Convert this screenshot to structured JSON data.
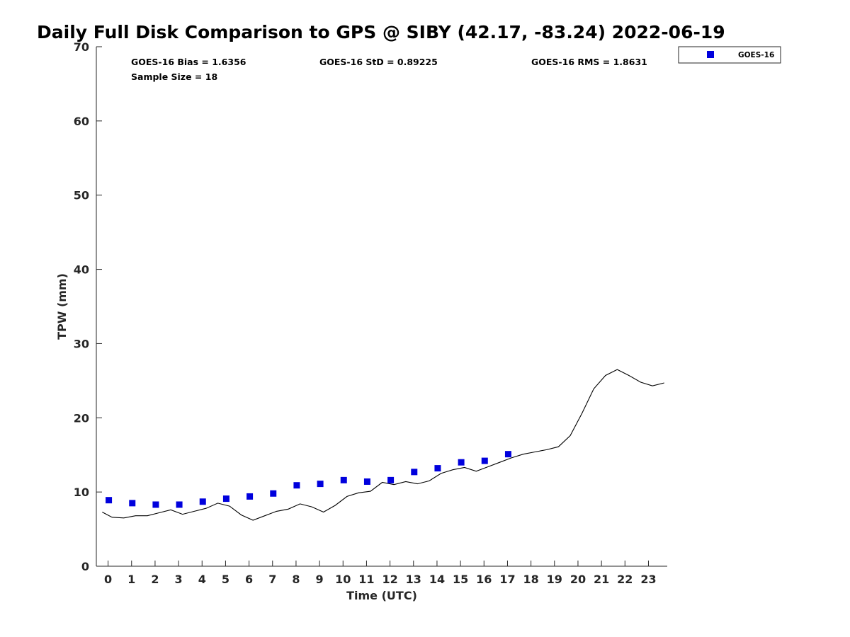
{
  "chart_data": {
    "type": "scatter",
    "title": "Daily Full Disk Comparison to GPS @ SIBY (42.17, -83.24) 2022-06-19",
    "xlabel": "Time (UTC)",
    "ylabel": "TPW (mm)",
    "xlim": [
      -0.5,
      23.8
    ],
    "ylim": [
      0,
      70
    ],
    "xticks": [
      0,
      1,
      2,
      3,
      4,
      5,
      6,
      7,
      8,
      9,
      10,
      11,
      12,
      13,
      14,
      15,
      16,
      17,
      18,
      19,
      20,
      21,
      22,
      23
    ],
    "yticks": [
      0,
      10,
      20,
      30,
      40,
      50,
      60,
      70
    ],
    "grid": false,
    "legend_position": "top-right, outside plot",
    "stats": {
      "bias": "GOES-16 Bias = 1.6356",
      "std": "GOES-16 StD = 0.89225",
      "rms": "GOES-16 RMS = 1.8631",
      "sample": "Sample Size = 18"
    },
    "series": [
      {
        "name": "GOES-16",
        "kind": "scatter",
        "marker": "square",
        "color": "#0000dd",
        "x": [
          0.03,
          1.03,
          2.03,
          3.03,
          4.03,
          5.03,
          6.03,
          7.03,
          8.03,
          9.03,
          10.03,
          11.03,
          12.03,
          13.03,
          14.03,
          15.03,
          16.03,
          17.03
        ],
        "y": [
          8.9,
          8.5,
          8.3,
          8.3,
          8.7,
          9.1,
          9.4,
          9.8,
          10.9,
          11.1,
          11.6,
          11.4,
          11.6,
          12.7,
          13.2,
          14.0,
          14.2,
          15.1
        ]
      },
      {
        "kind": "line",
        "color": "#000000",
        "x": [
          -0.25,
          0.17,
          0.67,
          1.17,
          1.67,
          2.17,
          2.67,
          3.17,
          3.67,
          4.17,
          4.67,
          5.17,
          5.67,
          6.17,
          6.67,
          7.17,
          7.67,
          8.17,
          8.67,
          9.17,
          9.67,
          10.17,
          10.67,
          11.17,
          11.67,
          12.17,
          12.67,
          13.17,
          13.67,
          14.17,
          14.67,
          15.17,
          15.67,
          16.17,
          16.67,
          17.17,
          17.67,
          18.17,
          18.67,
          19.17,
          19.67,
          20.17,
          20.67,
          21.17,
          21.67,
          22.17,
          22.67,
          23.17,
          23.67
        ],
        "y": [
          7.3,
          6.6,
          6.5,
          6.8,
          6.8,
          7.2,
          7.6,
          7.0,
          7.4,
          7.8,
          8.5,
          8.1,
          6.9,
          6.2,
          6.8,
          7.4,
          7.7,
          8.4,
          8.0,
          7.3,
          8.2,
          9.4,
          9.9,
          10.1,
          11.3,
          11.0,
          11.4,
          11.1,
          11.5,
          12.5,
          13.0,
          13.3,
          12.8,
          13.4,
          14.0,
          14.6,
          15.1,
          15.4,
          15.7,
          16.1,
          17.6,
          20.6,
          23.9,
          25.7,
          26.5,
          25.7,
          24.8,
          24.3,
          24.7
        ]
      }
    ]
  }
}
